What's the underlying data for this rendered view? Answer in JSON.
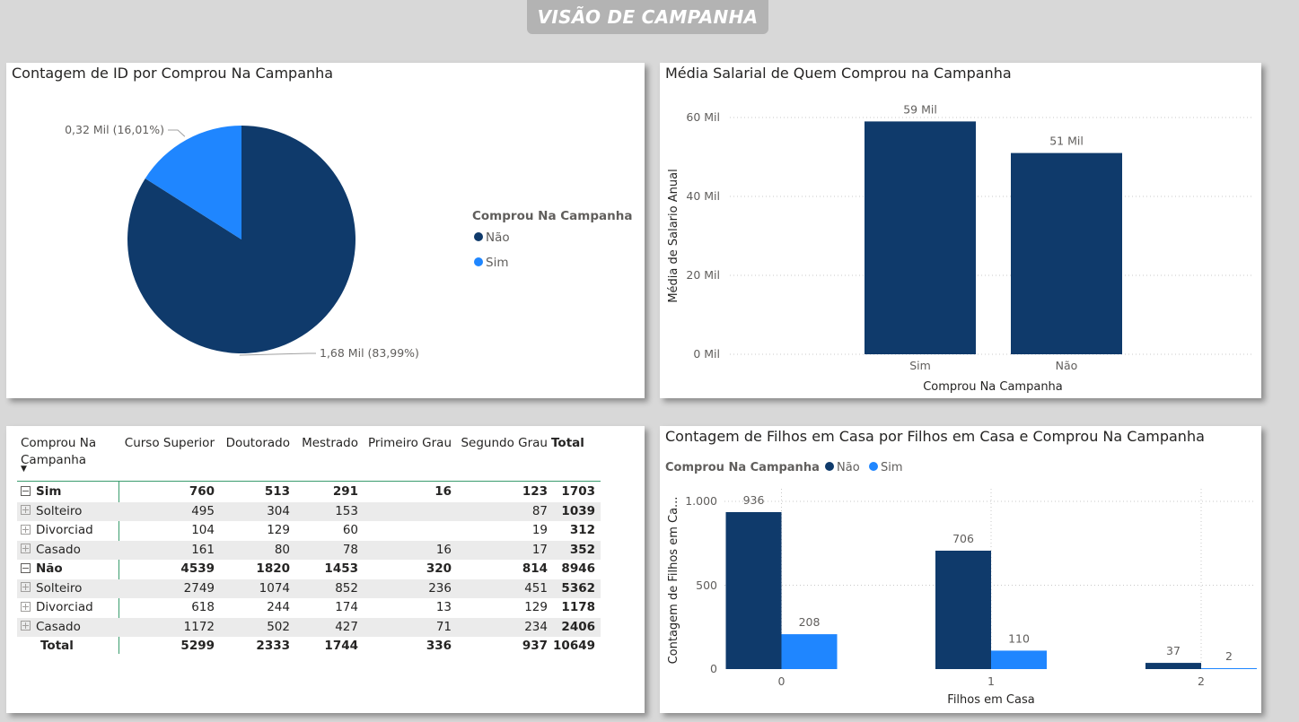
{
  "page_title": "VISÃO DE CAMPANHA",
  "colors": {
    "nao": "#0f3a6b",
    "sim": "#1f86ff",
    "background": "#d8d8d8"
  },
  "pie": {
    "title": "Contagem de ID por Comprou Na Campanha",
    "legend_title": "Comprou Na Campanha",
    "legend_items": [
      "Não",
      "Sim"
    ],
    "labels": {
      "sim": "0,32 Mil (16,01%)",
      "nao": "1,68 Mil (83,99%)"
    }
  },
  "salary": {
    "title": "Média Salarial de Quem Comprou na Campanha",
    "ylabel": "Média de Salario Anual",
    "xlabel": "Comprou Na Campanha",
    "yticks": [
      "60 Mil",
      "40 Mil",
      "20 Mil",
      "0 Mil"
    ],
    "categories": [
      "Sim",
      "Não"
    ],
    "data_labels": [
      "59 Mil",
      "51 Mil"
    ]
  },
  "children": {
    "title": "Contagem de Filhos em Casa por Filhos em Casa e Comprou Na Campanha",
    "legend_title": "Comprou Na Campanha",
    "legend_items": [
      "Não",
      "Sim"
    ],
    "ylabel": "Contagem de Filhos em Ca...",
    "xlabel": "Filhos em Casa",
    "yticks": [
      "1.000",
      "500",
      "0"
    ],
    "categories": [
      "0",
      "1",
      "2"
    ]
  },
  "matrix": {
    "row_header_line1": "Comprou Na",
    "row_header_line2": "Campanha",
    "sort_icon": "▼",
    "columns": [
      "Curso Superior",
      "Doutorado",
      "Mestrado",
      "Primeiro Grau",
      "Segundo Grau",
      "Total"
    ],
    "rows": [
      {
        "label": "Sim",
        "level": 0,
        "values": [
          "760",
          "513",
          "291",
          "16",
          "123",
          "1703"
        ]
      },
      {
        "label": "Solteiro",
        "level": 1,
        "values": [
          "495",
          "304",
          "153",
          "",
          "87",
          "1039"
        ]
      },
      {
        "label": "Divorciad",
        "level": 1,
        "values": [
          "104",
          "129",
          "60",
          "",
          "19",
          "312"
        ]
      },
      {
        "label": "Casado",
        "level": 1,
        "values": [
          "161",
          "80",
          "78",
          "16",
          "17",
          "352"
        ]
      },
      {
        "label": "Não",
        "level": 0,
        "values": [
          "4539",
          "1820",
          "1453",
          "320",
          "814",
          "8946"
        ]
      },
      {
        "label": "Solteiro",
        "level": 1,
        "values": [
          "2749",
          "1074",
          "852",
          "236",
          "451",
          "5362"
        ]
      },
      {
        "label": "Divorciad",
        "level": 1,
        "values": [
          "618",
          "244",
          "174",
          "13",
          "129",
          "1178"
        ]
      },
      {
        "label": "Casado",
        "level": 1,
        "values": [
          "1172",
          "502",
          "427",
          "71",
          "234",
          "2406"
        ]
      },
      {
        "label": "Total",
        "level": 0,
        "values": [
          "5299",
          "2333",
          "1744",
          "336",
          "937",
          "10649"
        ]
      }
    ]
  },
  "chart_data": [
    {
      "type": "pie",
      "title": "Contagem de ID por Comprou Na Campanha",
      "legend_title": "Comprou Na Campanha",
      "legend_placement": "right",
      "categories": [
        "Não",
        "Sim"
      ],
      "values": [
        1680,
        320
      ],
      "percentages": [
        83.99,
        16.01
      ],
      "data_labels": [
        "1,68 Mil (83,99%)",
        "0,32 Mil (16,01%)"
      ]
    },
    {
      "type": "bar",
      "title": "Média Salarial de Quem Comprou na Campanha",
      "categories": [
        "Sim",
        "Não"
      ],
      "values": [
        59000,
        51000
      ],
      "data_labels": [
        "59 Mil",
        "51 Mil"
      ],
      "xlabel": "Comprou Na Campanha",
      "ylabel": "Média de Salario Anual",
      "ylim": [
        0,
        60000
      ],
      "yticks": [
        0,
        20000,
        40000,
        60000
      ],
      "grid": true
    },
    {
      "type": "bar",
      "title": "Contagem de Filhos em Casa por Filhos em Casa e Comprou Na Campanha",
      "categories": [
        "0",
        "1",
        "2"
      ],
      "series": [
        {
          "name": "Não",
          "values": [
            936,
            706,
            37
          ]
        },
        {
          "name": "Sim",
          "values": [
            208,
            110,
            2
          ]
        }
      ],
      "xlabel": "Filhos em Casa",
      "ylabel": "Contagem de Filhos em Ca...",
      "ylim": [
        0,
        1000
      ],
      "yticks": [
        0,
        500,
        1000
      ],
      "legend_title": "Comprou Na Campanha",
      "legend_placement": "top-left",
      "grid": true
    }
  ]
}
